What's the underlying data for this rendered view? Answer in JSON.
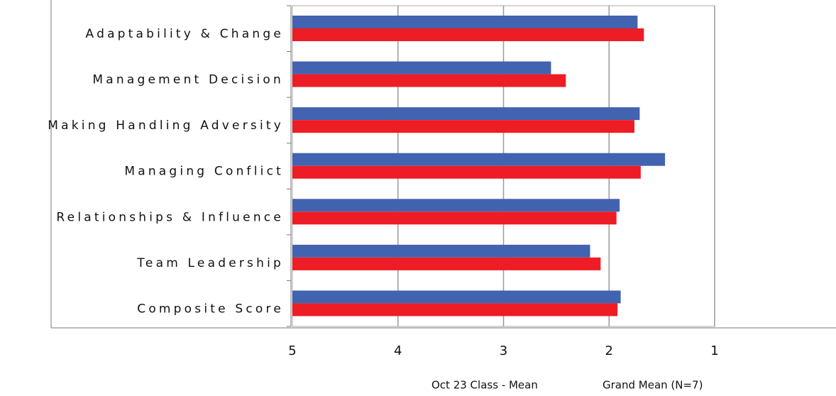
{
  "chart_data": {
    "type": "barh",
    "categories": [
      "Adaptability & Change",
      "Management Decision",
      "Making Handling Adversity",
      "Managing Conflict",
      "Relationships & Influence",
      "Team Leadership",
      "Composite Score"
    ],
    "series": [
      {
        "name": "Oct 23 Class - Mean",
        "color": "#4263b0",
        "values": [
          1.73,
          2.55,
          1.71,
          1.47,
          1.9,
          2.18,
          1.89
        ]
      },
      {
        "name": "Grand Mean (N=7)",
        "color": "#ee1c25",
        "values": [
          1.67,
          2.41,
          1.76,
          1.7,
          1.93,
          2.08,
          1.92
        ]
      }
    ],
    "xlim": [
      5,
      1
    ],
    "xticks": [
      5,
      4,
      3,
      2,
      1
    ],
    "grid": true
  }
}
